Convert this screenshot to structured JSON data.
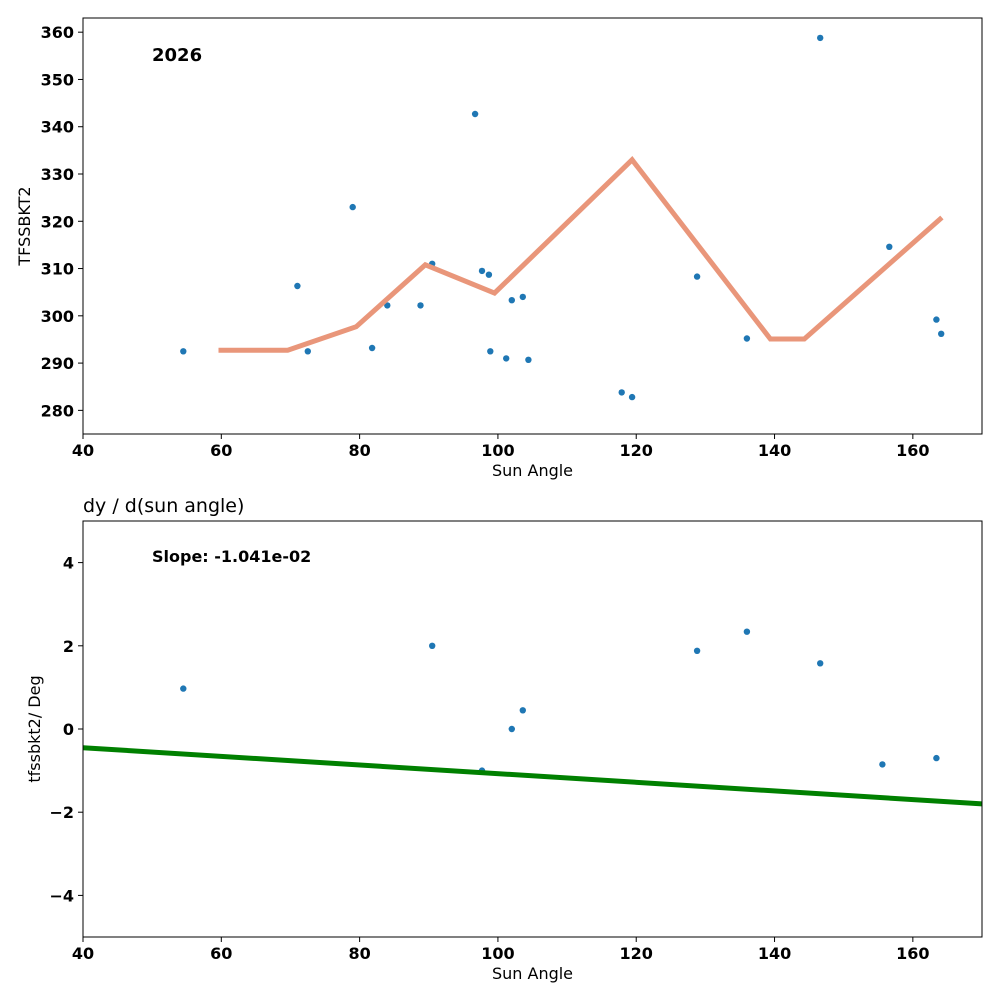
{
  "chart_data": [
    {
      "type": "scatter",
      "title": "",
      "annotation": "2026",
      "xlabel": "Sun Angle",
      "ylabel": "TFSSBKT2",
      "xlim": [
        40,
        170
      ],
      "ylim": [
        275,
        363
      ],
      "xticks": [
        40,
        60,
        80,
        100,
        120,
        140,
        160
      ],
      "yticks": [
        280,
        290,
        300,
        310,
        320,
        330,
        340,
        350,
        360
      ],
      "grid": false,
      "colors": {
        "points": "#1f77b4",
        "line": "#e9967a"
      },
      "series": [
        {
          "type": "scatter",
          "points": [
            [
              54.5,
              292.5
            ],
            [
              71.0,
              306.3
            ],
            [
              72.5,
              292.5
            ],
            [
              79.0,
              323.0
            ],
            [
              81.8,
              293.2
            ],
            [
              84.0,
              302.2
            ],
            [
              88.8,
              302.2
            ],
            [
              90.5,
              311.0
            ],
            [
              96.7,
              342.7
            ],
            [
              97.7,
              309.5
            ],
            [
              98.7,
              308.7
            ],
            [
              98.9,
              292.5
            ],
            [
              101.2,
              291.0
            ],
            [
              102.0,
              303.3
            ],
            [
              103.6,
              304.0
            ],
            [
              104.4,
              290.7
            ],
            [
              117.9,
              283.8
            ],
            [
              119.4,
              282.8
            ],
            [
              128.8,
              308.3
            ],
            [
              136.0,
              295.2
            ],
            [
              146.6,
              358.8
            ],
            [
              156.6,
              314.6
            ],
            [
              163.4,
              299.2
            ],
            [
              164.1,
              296.2
            ]
          ]
        },
        {
          "type": "line",
          "points": [
            [
              59.6,
              292.7
            ],
            [
              69.6,
              292.7
            ],
            [
              79.5,
              297.7
            ],
            [
              89.5,
              310.8
            ],
            [
              99.5,
              304.8
            ],
            [
              119.4,
              333.0
            ],
            [
              139.4,
              295.1
            ],
            [
              144.3,
              295.1
            ],
            [
              164.2,
              320.8
            ]
          ]
        }
      ]
    },
    {
      "type": "scatter",
      "title": "dy / d(sun angle)",
      "annotation": "Slope: -1.041e-02",
      "xlabel": "Sun Angle",
      "ylabel": "tfssbkt2/ Deg",
      "xlim": [
        40,
        170
      ],
      "ylim": [
        -5,
        5
      ],
      "xticks": [
        40,
        60,
        80,
        100,
        120,
        140,
        160
      ],
      "yticks": [
        -4,
        -2,
        0,
        2,
        4
      ],
      "ytick_labels": [
        "−4",
        "−2",
        "0",
        "2",
        "4"
      ],
      "grid": false,
      "colors": {
        "points": "#1f77b4",
        "line": "#008000"
      },
      "series": [
        {
          "type": "scatter",
          "points": [
            [
              54.5,
              0.97
            ],
            [
              90.5,
              2.0
            ],
            [
              97.7,
              -1.0
            ],
            [
              102.0,
              0.0
            ],
            [
              103.6,
              0.45
            ],
            [
              128.8,
              1.88
            ],
            [
              136.0,
              2.34
            ],
            [
              146.6,
              1.58
            ],
            [
              155.6,
              -0.85
            ],
            [
              163.4,
              -0.7
            ]
          ]
        },
        {
          "type": "line",
          "points": [
            [
              40,
              -0.45
            ],
            [
              170,
              -1.8
            ]
          ]
        }
      ]
    }
  ]
}
